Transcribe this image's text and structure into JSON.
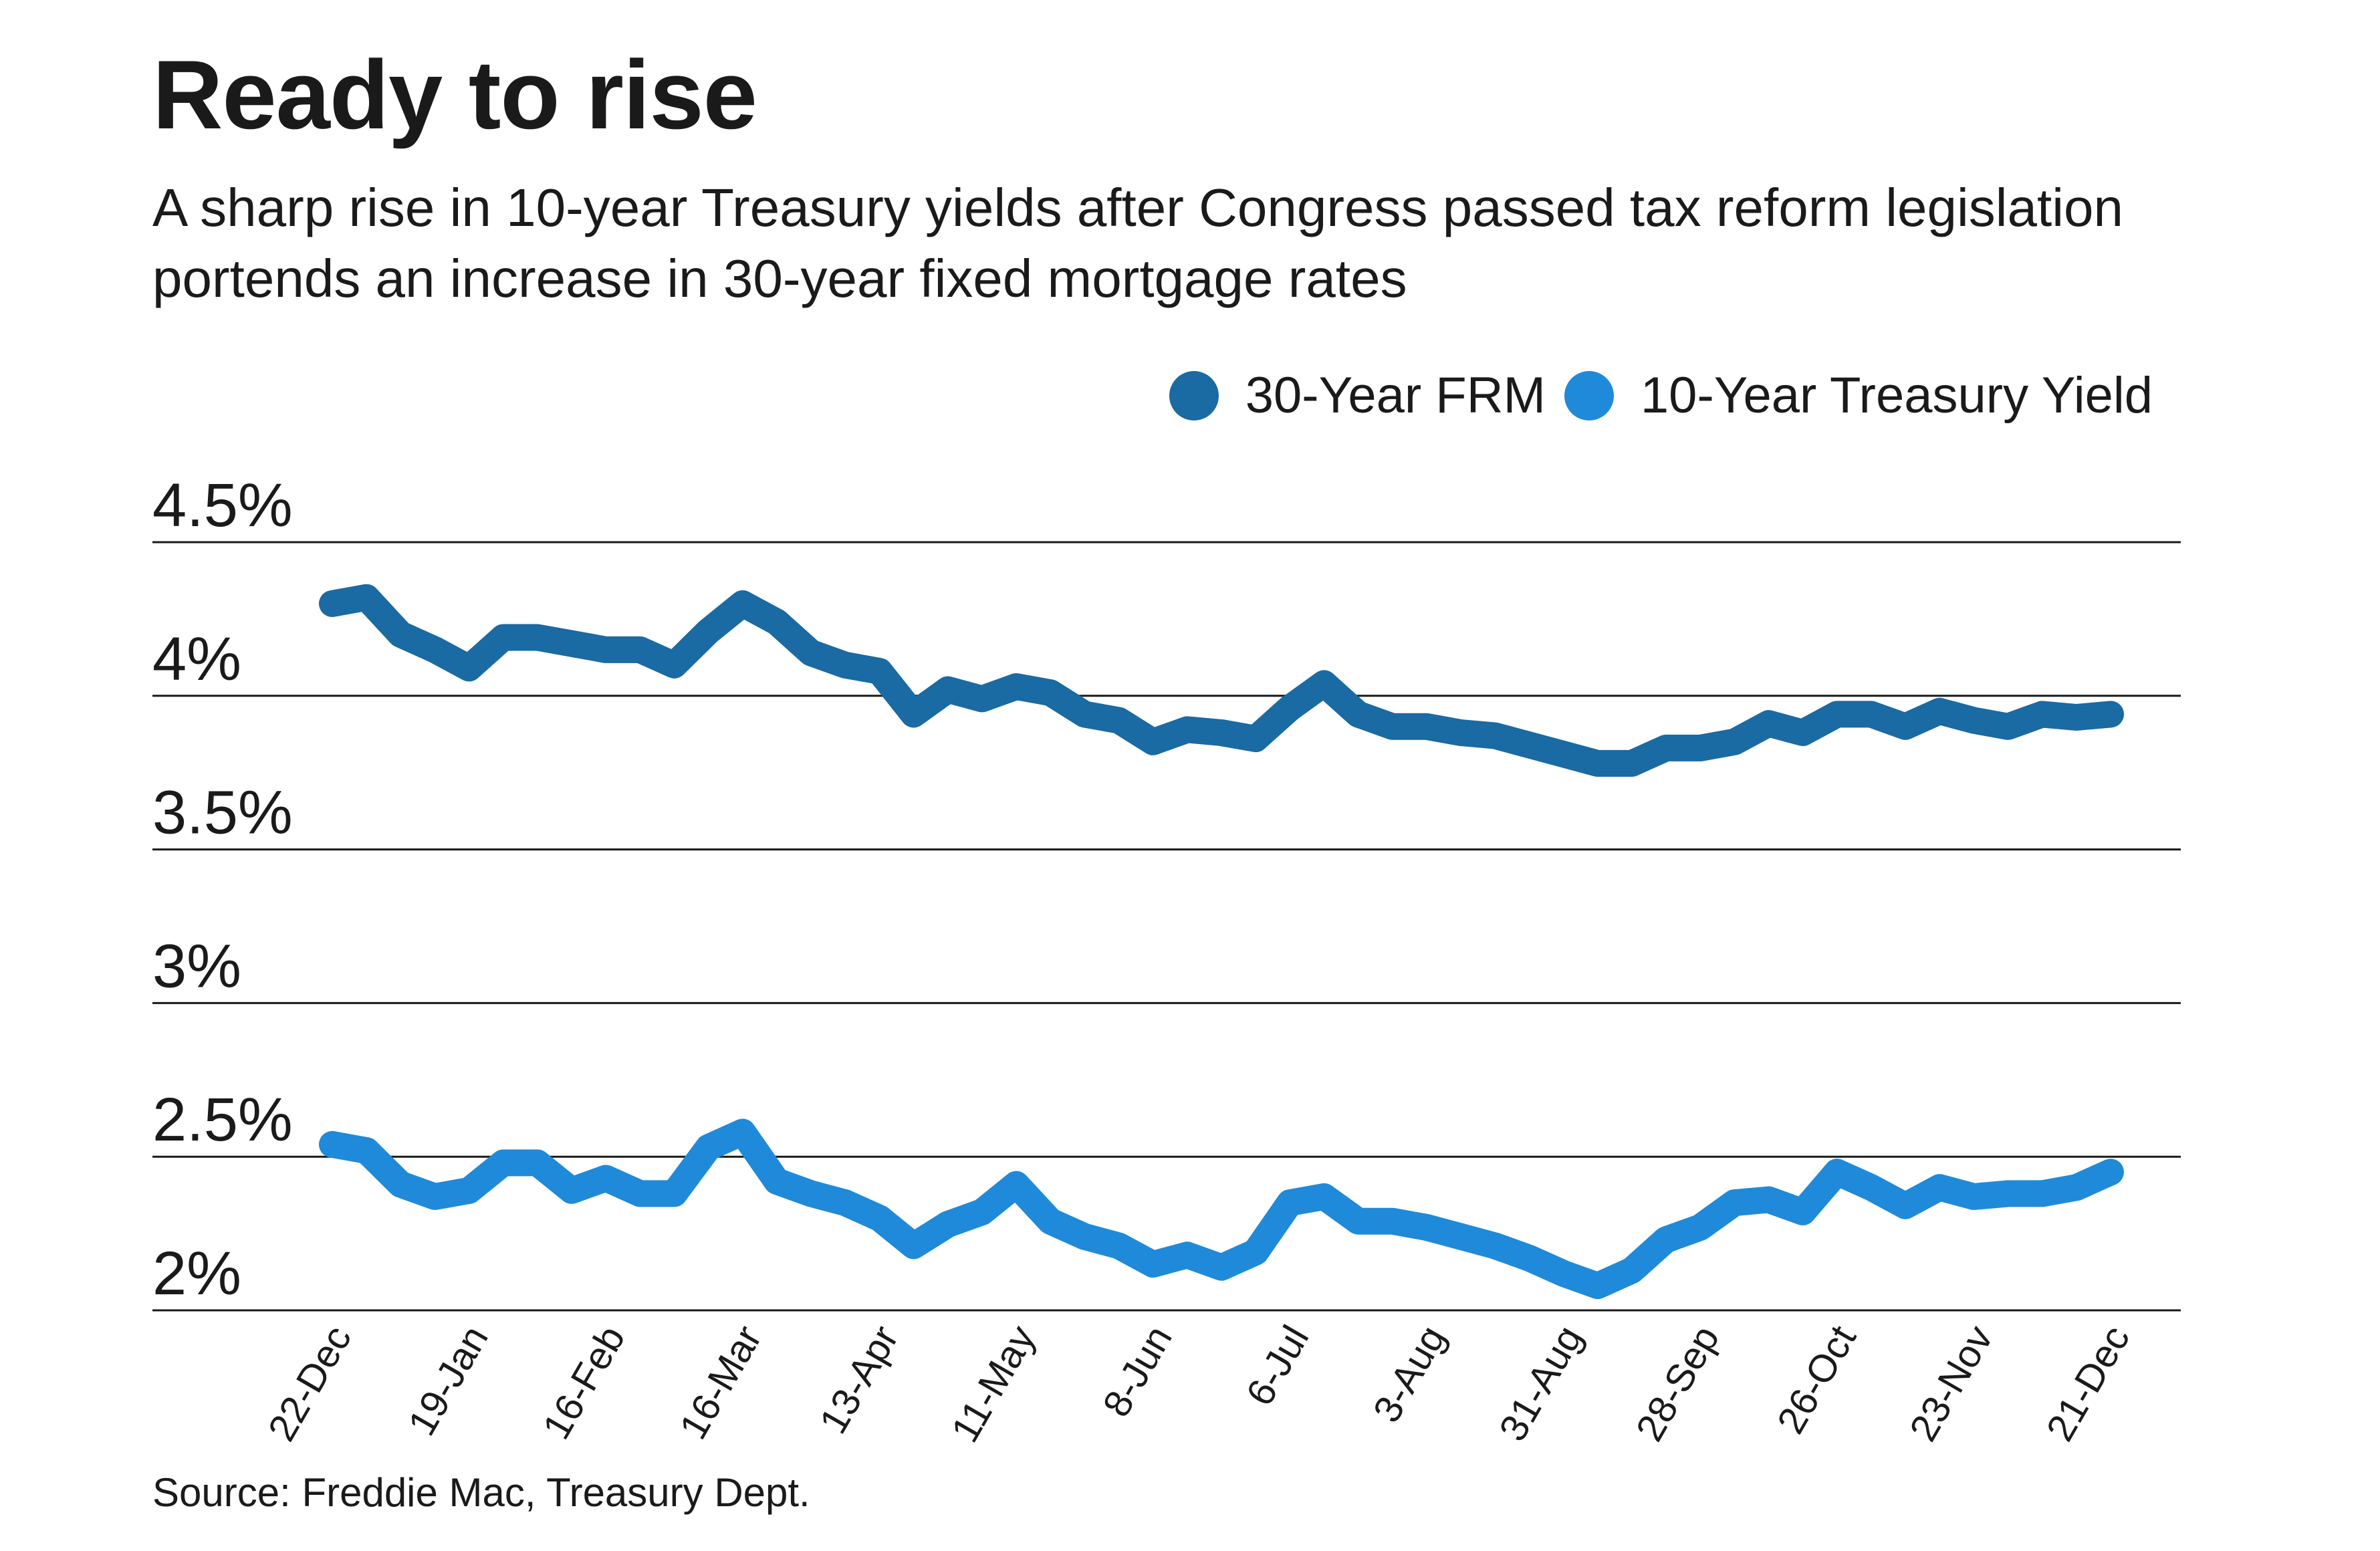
{
  "title": "Ready to rise",
  "subtitle": "A sharp rise in 10-year Treasury yields after Congress passed tax reform legislation portends an increase in 30-year fixed mortgage rates",
  "source": "Source: Freddie Mac, Treasury Dept.",
  "colors": {
    "frm": "#1a6aa3",
    "treasury": "#1f8ad9",
    "grid": "#1a1a1a",
    "text": "#1a1a1a"
  },
  "chart_data": {
    "type": "line",
    "title": "Ready to rise",
    "xlabel": "",
    "ylabel": "",
    "ylim": [
      2.0,
      4.5
    ],
    "yticks": [
      2.0,
      2.5,
      3.0,
      3.5,
      4.0,
      4.5
    ],
    "ytick_labels": [
      "2%",
      "2.5%",
      "3%",
      "3.5%",
      "4%",
      "4.5%"
    ],
    "xtick_labels": [
      "22-Dec",
      "19-Jan",
      "16-Feb",
      "16-Mar",
      "13-Apr",
      "11-May",
      "8-Jun",
      "6-Jul",
      "3-Aug",
      "31-Aug",
      "28-Sep",
      "26-Oct",
      "23-Nov",
      "21-Dec"
    ],
    "xtick_positions": [
      0,
      4,
      8,
      12,
      16,
      20,
      24,
      28,
      32,
      36,
      40,
      44,
      48,
      52
    ],
    "legend": "top-right",
    "grid": true,
    "series": [
      {
        "name": "30-Year FRM",
        "values": [
          4.3,
          4.32,
          4.2,
          4.15,
          4.09,
          4.19,
          4.19,
          4.17,
          4.15,
          4.15,
          4.1,
          4.21,
          4.3,
          4.24,
          4.14,
          4.1,
          4.08,
          3.94,
          4.02,
          3.99,
          4.03,
          4.01,
          3.94,
          3.92,
          3.85,
          3.89,
          3.88,
          3.86,
          3.96,
          4.04,
          3.94,
          3.9,
          3.9,
          3.88,
          3.87,
          3.84,
          3.81,
          3.78,
          3.78,
          3.83,
          3.83,
          3.85,
          3.91,
          3.88,
          3.94,
          3.94,
          3.9,
          3.95,
          3.92,
          3.9,
          3.94,
          3.93,
          3.94
        ]
      },
      {
        "name": "10-Year Treasury Yield",
        "values": [
          2.54,
          2.52,
          2.41,
          2.37,
          2.39,
          2.48,
          2.48,
          2.39,
          2.43,
          2.38,
          2.38,
          2.53,
          2.58,
          2.42,
          2.38,
          2.35,
          2.3,
          2.21,
          2.28,
          2.32,
          2.41,
          2.29,
          2.24,
          2.21,
          2.15,
          2.18,
          2.14,
          2.19,
          2.35,
          2.37,
          2.29,
          2.29,
          2.27,
          2.24,
          2.21,
          2.17,
          2.12,
          2.08,
          2.13,
          2.23,
          2.27,
          2.35,
          2.36,
          2.32,
          2.45,
          2.4,
          2.34,
          2.4,
          2.37,
          2.38,
          2.38,
          2.4,
          2.45
        ]
      }
    ]
  }
}
